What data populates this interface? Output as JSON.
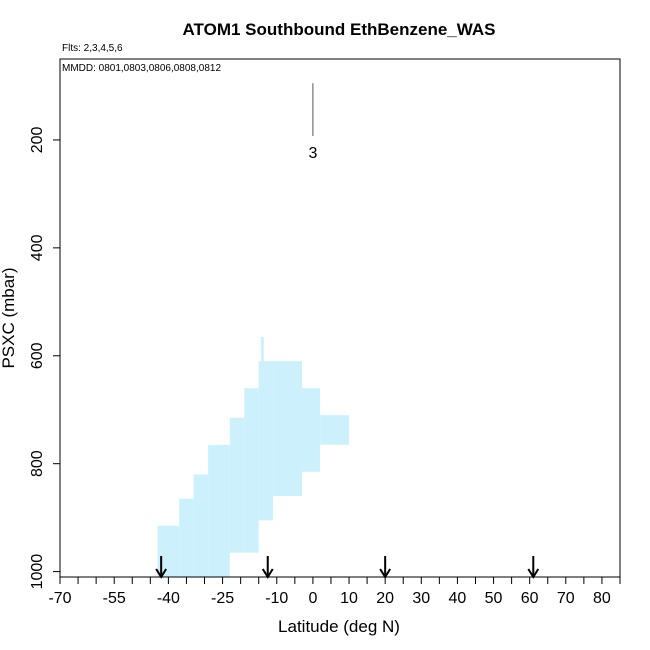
{
  "chart_data": {
    "type": "heatmap",
    "title": "ATOM1 Southbound EthBenzene_WAS",
    "flights_note": "Flts: 2,3,4,5,6",
    "dates_note": "MMDD: 0801,0803,0806,0808,0812",
    "xlabel": "Latitude (deg N)",
    "ylabel": "PSXC (mbar)",
    "xlim": [
      -70,
      85
    ],
    "ylim": [
      1010,
      50
    ],
    "x_ticks": [
      -70,
      -55,
      -40,
      -25,
      -10,
      0,
      10,
      20,
      30,
      40,
      50,
      60,
      70,
      80
    ],
    "x_tick_labels": [
      "-70",
      "-55",
      "-40",
      "-25",
      "-10",
      "0",
      "10",
      "20",
      "30",
      "40",
      "50",
      "60",
      "70",
      "80"
    ],
    "x_minor_ticks": [
      -65,
      -60,
      -50,
      -45,
      -35,
      -30,
      -20,
      -15,
      -5,
      5,
      15,
      25,
      35,
      45,
      55,
      65,
      75,
      85
    ],
    "y_ticks": [
      200,
      400,
      600,
      800,
      1000
    ],
    "y_tick_labels": [
      "200",
      "400",
      "600",
      "800",
      "1000"
    ],
    "fill_color": "#cdf0fd",
    "cells": [
      {
        "x0": -43,
        "x1": -37,
        "p0": 1010,
        "p1": 915
      },
      {
        "x0": -37,
        "x1": -33,
        "p0": 1010,
        "p1": 865
      },
      {
        "x0": -33,
        "x1": -29,
        "p0": 1010,
        "p1": 820
      },
      {
        "x0": -29,
        "x1": -23,
        "p0": 1010,
        "p1": 765
      },
      {
        "x0": -23,
        "x1": -19,
        "p0": 965,
        "p1": 715
      },
      {
        "x0": -19,
        "x1": -15,
        "p0": 965,
        "p1": 660
      },
      {
        "x0": -15,
        "x1": -11,
        "p0": 905,
        "p1": 610
      },
      {
        "x0": -11,
        "x1": -3,
        "p0": 860,
        "p1": 610
      },
      {
        "x0": -3,
        "x1": 2,
        "p0": 815,
        "p1": 660
      },
      {
        "x0": 2,
        "x1": 10,
        "p0": 765,
        "p1": 710
      },
      {
        "x0": -14.4,
        "x1": -13.6,
        "p0": 610,
        "p1": 565
      }
    ],
    "top_marker": {
      "x": 0,
      "p_top": 95,
      "p_bottom": 200,
      "label": "3"
    },
    "arrows_x": [
      -42,
      -12.5,
      20,
      61
    ]
  }
}
